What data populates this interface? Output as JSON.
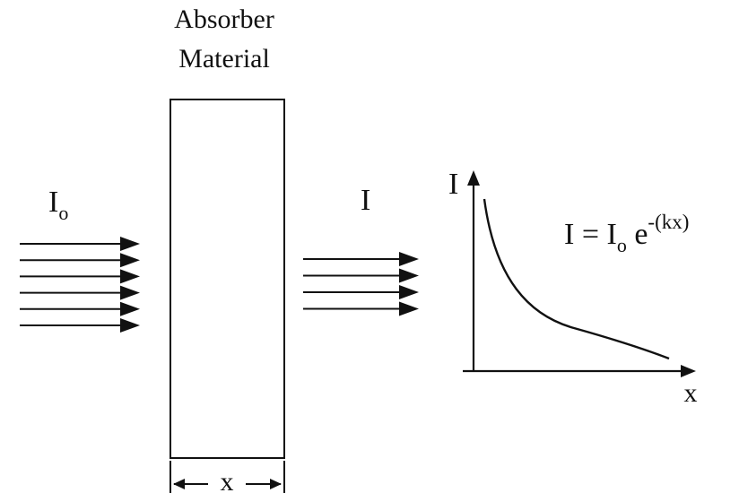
{
  "absorber": {
    "title_line1": "Absorber",
    "title_line2": "Material",
    "thickness_label": "x"
  },
  "incident_beam": {
    "symbol": "I",
    "subscript": "o",
    "ray_count": 6
  },
  "transmitted_beam": {
    "symbol": "I",
    "ray_count": 4
  },
  "graph": {
    "y_axis_label": "I",
    "x_axis_label": "x"
  },
  "equation": {
    "lhs": "I = I",
    "subscript": "o",
    "base": " e",
    "exponent": "-(kx)"
  }
}
